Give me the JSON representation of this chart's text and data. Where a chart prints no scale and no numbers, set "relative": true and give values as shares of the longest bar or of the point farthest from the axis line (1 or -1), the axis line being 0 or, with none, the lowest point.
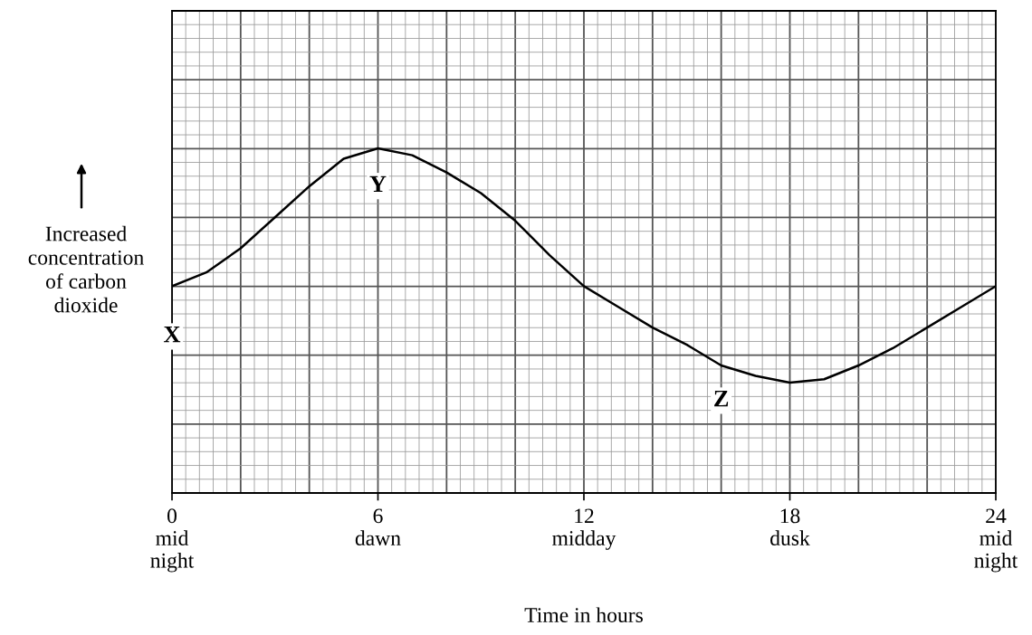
{
  "chart_data": {
    "type": "line",
    "relative": true,
    "xlabel": "Time in hours",
    "ylabel": "Increased\nconcentration\nof carbon\ndioxide",
    "x": [
      0,
      1,
      2,
      3,
      4,
      5,
      6,
      7,
      8,
      9,
      10,
      11,
      12,
      13,
      14,
      15,
      16,
      17,
      18,
      19,
      20,
      21,
      22,
      23,
      24
    ],
    "series": [
      {
        "color": "#000000",
        "values": [
          0.6,
          0.64,
          0.71,
          0.8,
          0.89,
          0.97,
          1.0,
          0.98,
          0.93,
          0.87,
          0.79,
          0.69,
          0.6,
          0.54,
          0.48,
          0.43,
          0.37,
          0.34,
          0.32,
          0.33,
          0.37,
          0.42,
          0.48,
          0.54,
          0.6
        ]
      }
    ],
    "xlim": [
      0,
      24
    ],
    "xticks": [
      {
        "value": 0,
        "label": "0\nmid\nnight"
      },
      {
        "value": 6,
        "label": "6\ndawn"
      },
      {
        "value": 12,
        "label": "12\nmidday"
      },
      {
        "value": 18,
        "label": "18\ndusk"
      },
      {
        "value": 24,
        "label": "24\nmid\nnight"
      }
    ],
    "grid": true,
    "marker": "none",
    "line_style": "solid",
    "annotations": [
      {
        "text": "X",
        "x": 0,
        "y": 0.6
      },
      {
        "text": "Y",
        "x": 6,
        "y": 1.0
      },
      {
        "text": "Z",
        "x": 16,
        "y": 0.37
      }
    ]
  }
}
